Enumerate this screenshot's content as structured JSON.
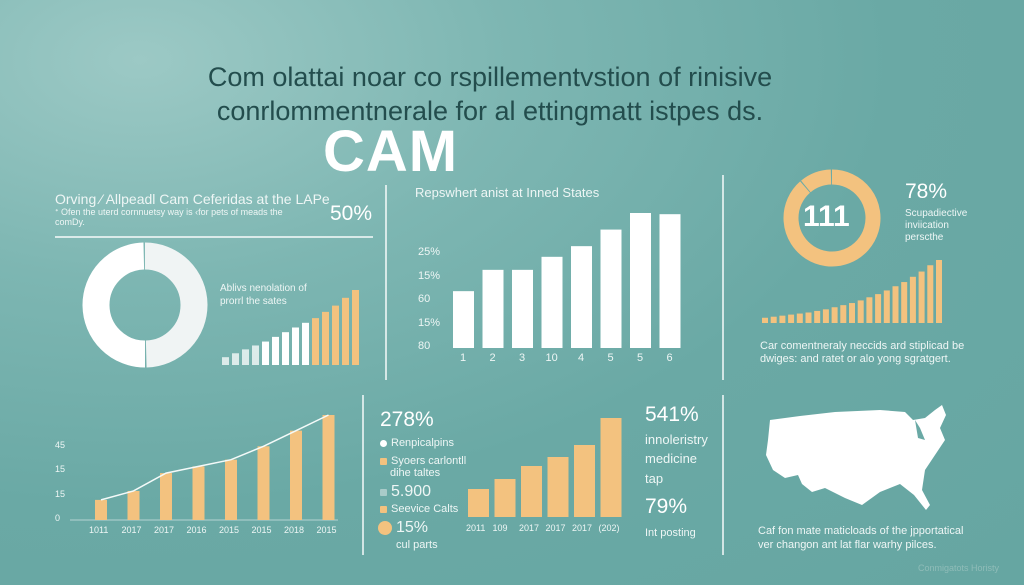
{
  "header": {
    "line1": "Com olattai noar co rspillementvstion of rinisive",
    "line2": "conrlommentnerale for al ettingmatt istpes ds.",
    "brand": "CAM"
  },
  "panel_tl": {
    "heading": "Orving ⁄ Allpeadl Cam Ceferidas at the LAPe",
    "sub1": "ᐩ Ofen the uterd cornnuetsy way is ‹for pets of meads the",
    "sub2": "comDy.",
    "stat": "50%",
    "caption1": "Ablivs nenolation of",
    "caption2": "prorrl the sates"
  },
  "panel_tr": {
    "donut_label": "111",
    "stat": "78%",
    "desc1": "Scupadiective",
    "desc2": "inviication",
    "desc3": "perscthe",
    "caption1": "Car comentneraly neccids ard stiplicad be",
    "caption2": "dwiges: and ratet or alo yong sgratgert."
  },
  "panel_bm": {
    "stat1": "278%",
    "legend": [
      {
        "label": "Renpicalpins",
        "color": "#ffffff"
      },
      {
        "label": "Syoers carlontll",
        "label2": "dihe taltes",
        "color": "#f3c27f"
      },
      {
        "label": "5.900",
        "color": "#a9cbc9"
      },
      {
        "label": "Seevice Calts",
        "color": "#f3c27f"
      },
      {
        "label": "15%",
        "label2": "cul parts",
        "color": "#f3c27f"
      }
    ],
    "stat2": "541%",
    "desc1": "innoleristry",
    "desc2": "medicine",
    "desc3": "tap",
    "stat3": "79%",
    "desc4": "Int posting"
  },
  "panel_br": {
    "caption1": "Caf fon mate maticloads of the jpportatical",
    "caption2": "ver changon ant lat flar warhy pilces.",
    "watermark": "Conmigatots Horisty"
  },
  "colors": {
    "background": "#6aa9a5",
    "accent": "#f3c27f",
    "bars": "#ffffff"
  },
  "chart_data": [
    {
      "type": "pie",
      "donut": true,
      "values": [
        50,
        50
      ],
      "colors": [
        "#f0f4f4",
        "#ffffff"
      ]
    },
    {
      "type": "bar",
      "values": [
        1,
        1.5,
        2,
        2.5,
        3,
        3.6,
        4.2,
        4.8,
        5.4,
        6,
        6.8,
        7.6,
        8.6,
        9.6
      ],
      "colors": [
        "white",
        "white",
        "white",
        "white",
        "white",
        "white",
        "white",
        "white",
        "white",
        "#f3c27f",
        "#f3c27f",
        "#f3c27f",
        "#f3c27f",
        "#f3c27f"
      ]
    },
    {
      "type": "bar",
      "title": "Repswhert anist at Inned States",
      "yticks": [
        "80",
        "15%",
        "60",
        "15%",
        "25%"
      ],
      "categories": [
        "1",
        "2",
        "3",
        "10",
        "4",
        "5",
        "5",
        "6"
      ],
      "values": [
        48,
        66,
        66,
        77,
        86,
        100,
        114,
        113
      ]
    },
    {
      "type": "pie",
      "donut": true,
      "values": [
        89,
        11
      ],
      "colors": [
        "#f3c27f",
        "#f3c27f"
      ]
    },
    {
      "type": "bar",
      "values": [
        1,
        1.2,
        1.4,
        1.6,
        1.8,
        2,
        2.3,
        2.6,
        3,
        3.4,
        3.8,
        4.3,
        4.9,
        5.5,
        6.2,
        7,
        7.8,
        8.8,
        9.8,
        11,
        12
      ]
    },
    {
      "type": "bar",
      "yticks": [
        "0",
        "15",
        "15",
        "45"
      ],
      "categories": [
        "1011",
        "2017",
        "2017",
        "2016",
        "2015",
        "2015",
        "2018",
        "2015"
      ],
      "values": [
        9,
        13,
        21,
        24,
        27,
        33,
        40,
        47
      ],
      "line": true
    },
    {
      "type": "bar",
      "categories": [
        "2011",
        "109",
        "2017",
        "2017",
        "2017",
        "(202)"
      ],
      "values": [
        28,
        38,
        51,
        60,
        72,
        99
      ]
    }
  ]
}
